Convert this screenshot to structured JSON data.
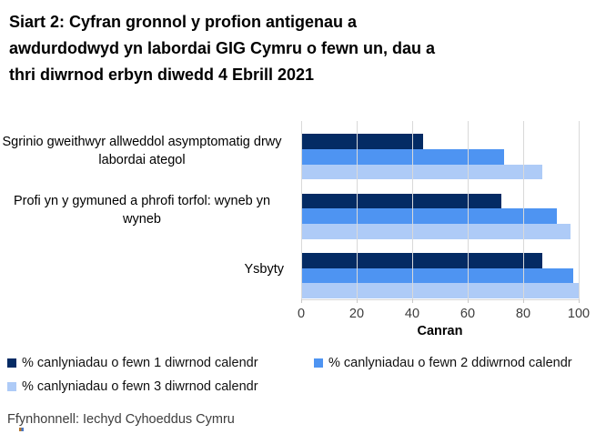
{
  "title": "Siart 2: Cyfran gronnol y profion antigenau a awdurdodwyd yn labordai GIG Cymru o fewn un, dau a thri diwrnod erbyn diwedd 4 Ebrill 2021",
  "title_lines": [
    "Siart 2: Cyfran gronnol y profion antigenau a",
    "awdurdodwyd yn labordai GIG Cymru o fewn un, dau a",
    "thri diwrnod erbyn diwedd 4 Ebrill 2021"
  ],
  "source": "Ffynhonnell: Iechyd Cyhoeddus Cymru",
  "colors": {
    "series1": "#042B64",
    "series2": "#4E94F2",
    "series3": "#AECBF7",
    "gridline": "#D9D9D9"
  },
  "chart_data": {
    "type": "bar",
    "orientation": "horizontal",
    "title": "Siart 2: Cyfran gronnol y profion antigenau a awdurdodwyd yn labordai GIG Cymru o fewn un, dau a thri diwrnod erbyn diwedd 4 Ebrill 2021",
    "categories": [
      "Sgrinio gweithwyr allweddol asymptomatig drwy labordai ategol",
      "Profi yn y gymuned a phrofi torfol: wyneb yn wyneb",
      "Ysbyty"
    ],
    "series": [
      {
        "name": "% canlyniadau o fewn 1 diwrnod calendr",
        "color": "#042B64",
        "values": [
          44,
          72,
          87
        ]
      },
      {
        "name": "% canlyniadau o fewn 2 ddiwrnod calendr",
        "color": "#4E94F2",
        "values": [
          73,
          92,
          98
        ]
      },
      {
        "name": "% canlyniadau o fewn 3 diwrnod calendr",
        "color": "#AECBF7",
        "values": [
          87,
          97,
          100
        ]
      }
    ],
    "xlabel": "Canran",
    "ylabel": "",
    "xticks": [
      0,
      20,
      40,
      60,
      80,
      100
    ],
    "xlim": [
      0,
      100
    ],
    "grid": "vertical",
    "legend_position": "bottom"
  }
}
